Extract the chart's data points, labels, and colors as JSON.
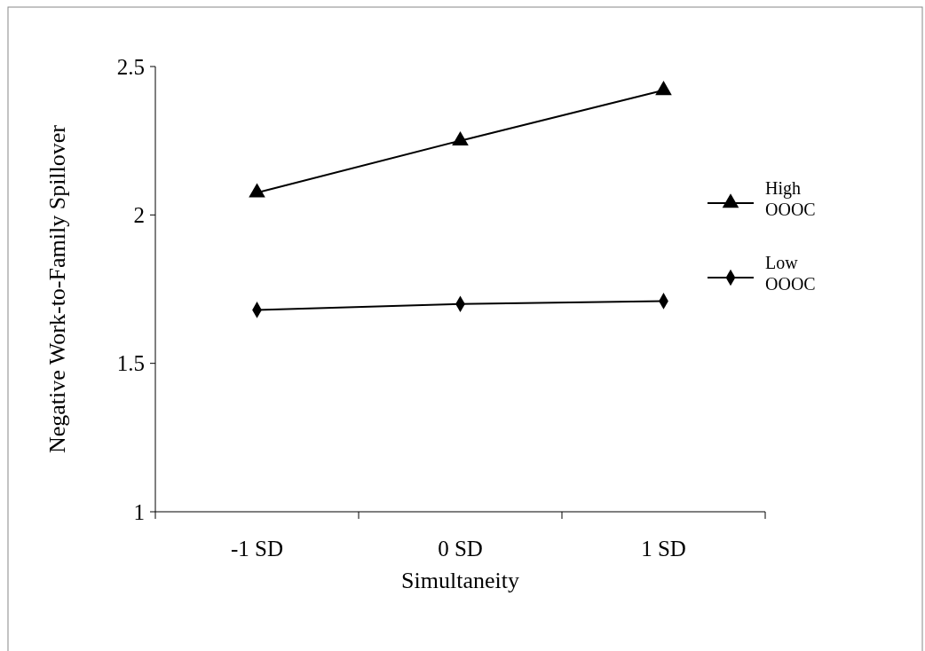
{
  "chart_data": {
    "type": "line",
    "xlabel": "Simultaneity",
    "ylabel": "Negative Work-to-Family Spillover",
    "categories": [
      "-1 SD",
      "0 SD",
      "1 SD"
    ],
    "series": [
      {
        "name": "High OOOC",
        "color": "#000000",
        "marker": "triangle",
        "values": [
          2.075,
          2.25,
          2.42
        ]
      },
      {
        "name": "Low OOOC",
        "color": "#000000",
        "marker": "diamond",
        "values": [
          1.68,
          1.7,
          1.71
        ]
      }
    ],
    "ylim": [
      1,
      2.5
    ],
    "yticks": [
      1,
      1.5,
      2,
      2.5
    ],
    "grid": false,
    "legend": "right",
    "line_style": "solid"
  }
}
